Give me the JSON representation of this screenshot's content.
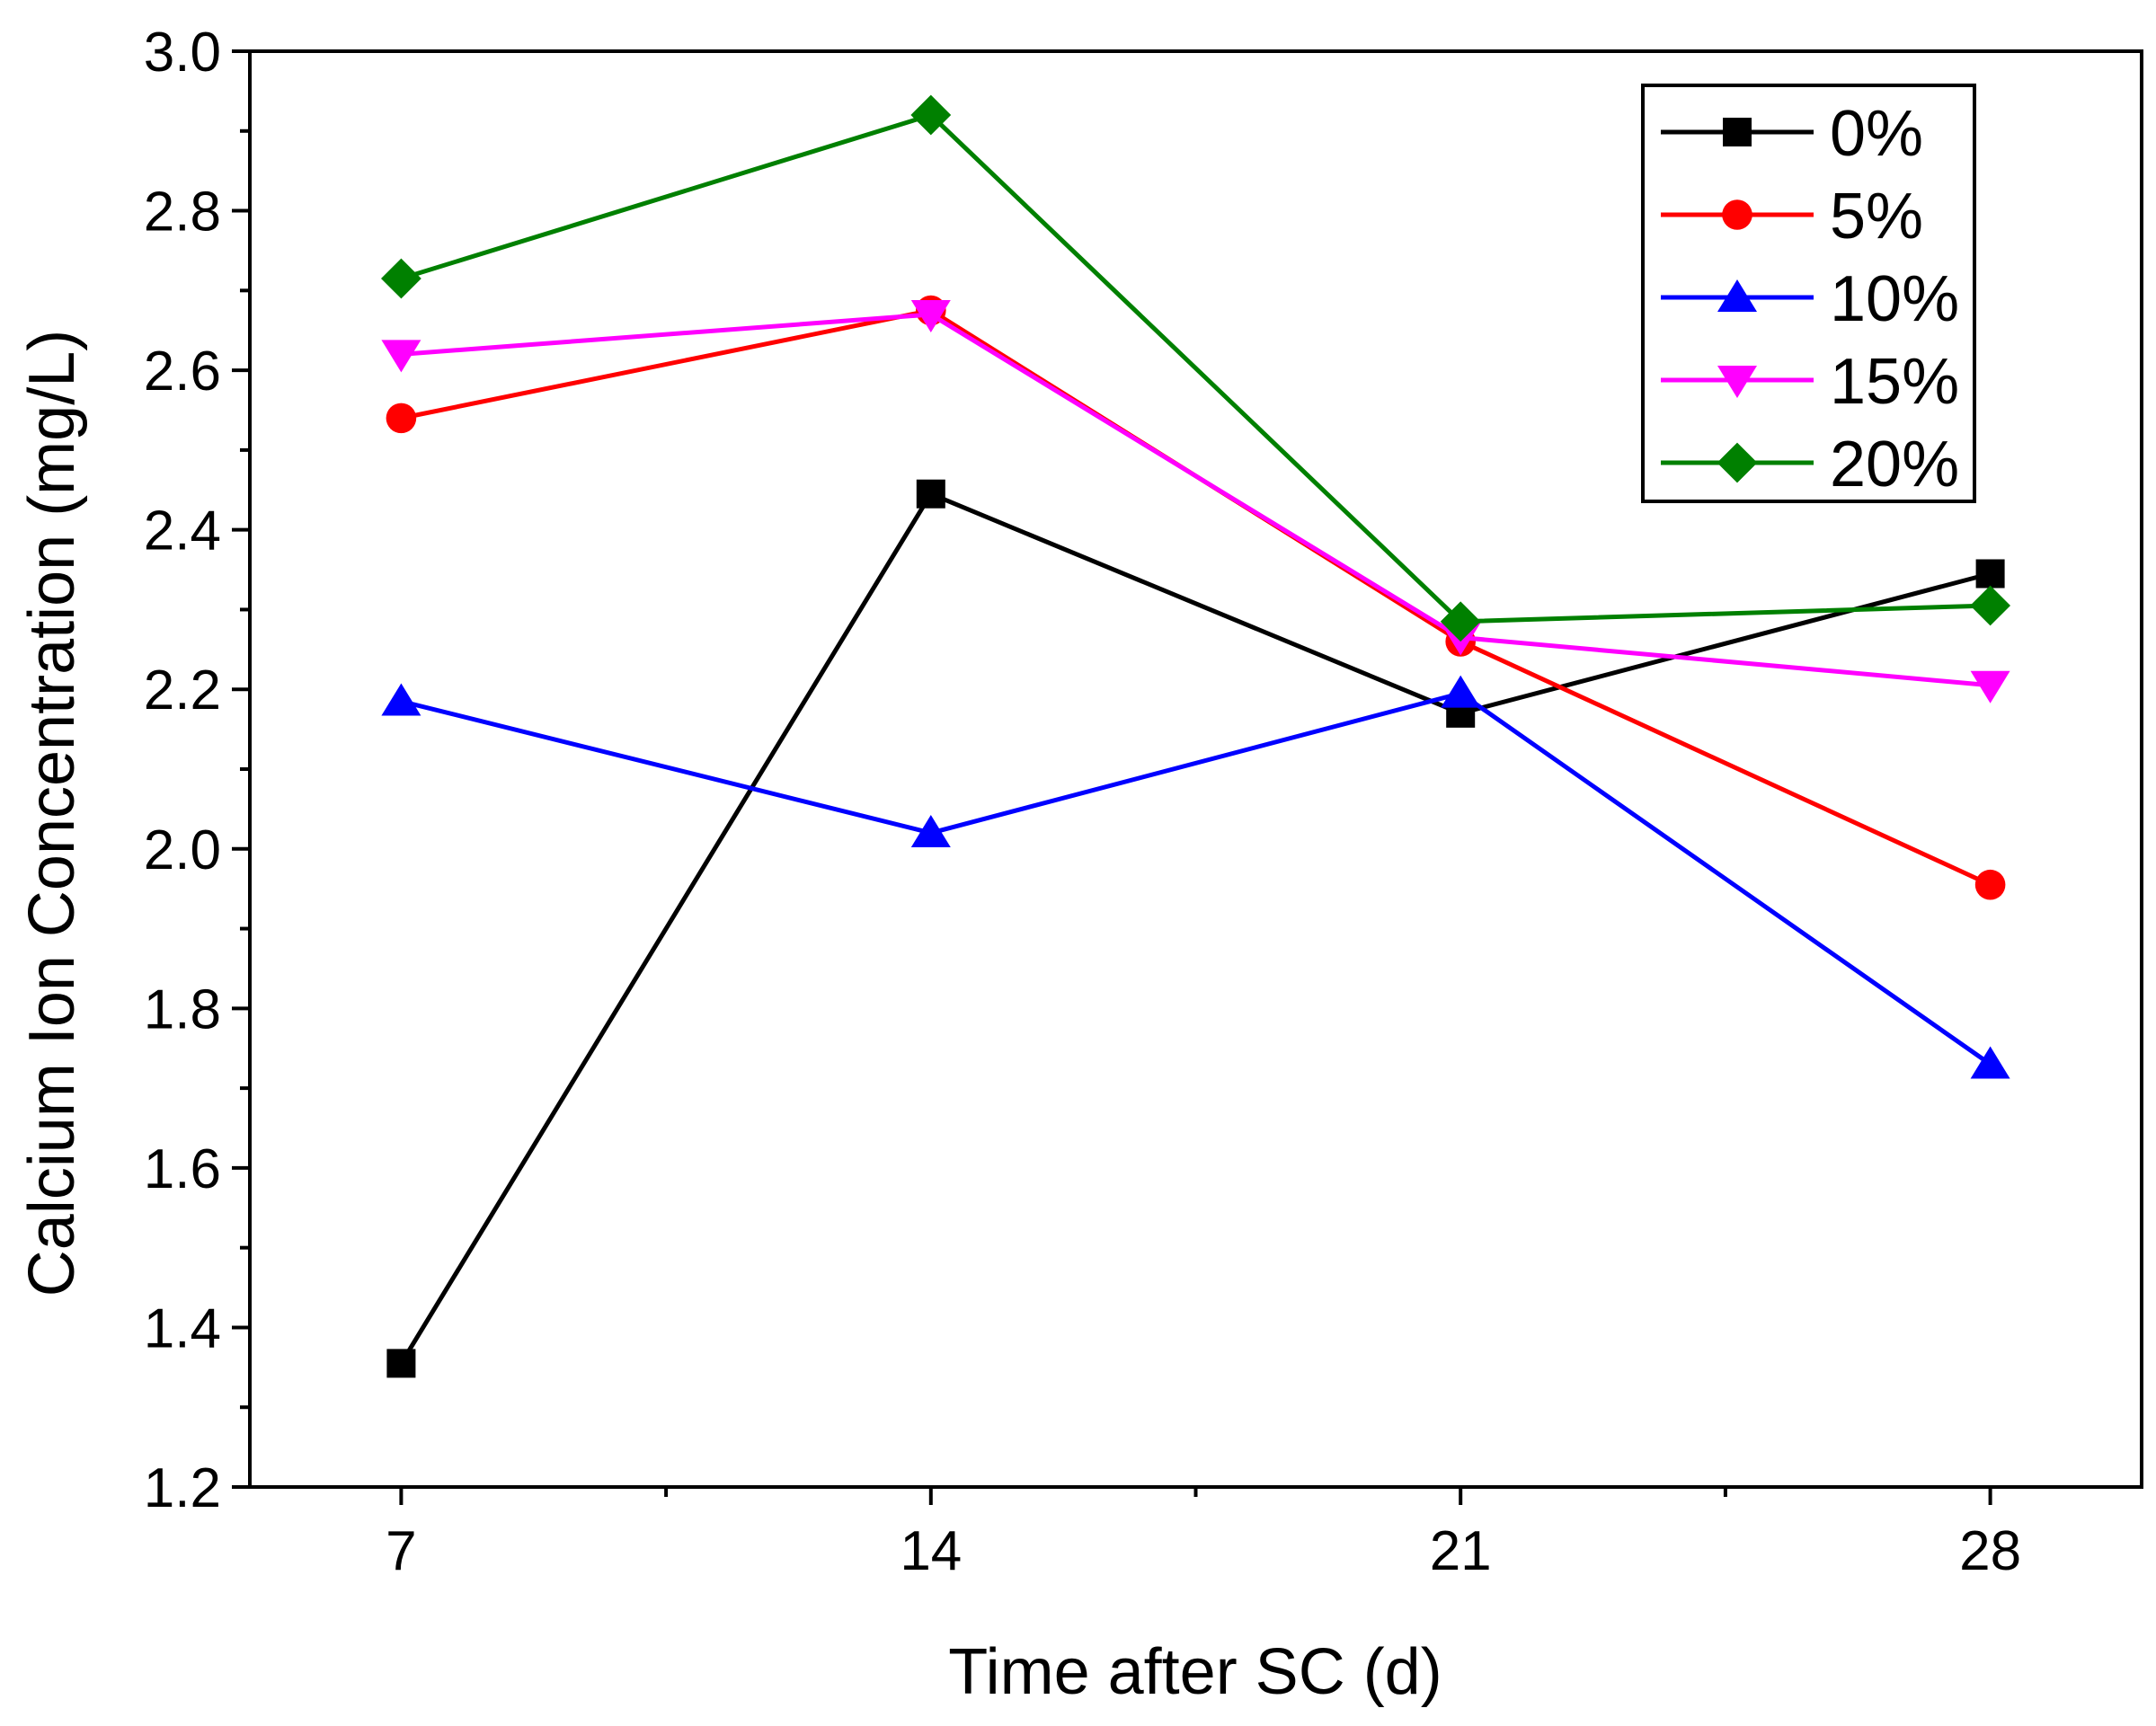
{
  "chart_data": {
    "type": "line",
    "title": "",
    "xlabel": "Time after SC (d)",
    "ylabel": "Calcium Ion Concentration (mg/L)",
    "x": [
      7,
      14,
      21,
      28
    ],
    "x_tick_labels": [
      "7",
      "14",
      "21",
      "28"
    ],
    "xlim": [
      5,
      30
    ],
    "ylim": [
      1.2,
      3.0
    ],
    "y_ticks": [
      1.2,
      1.4,
      1.6,
      1.8,
      2.0,
      2.2,
      2.4,
      2.6,
      2.8,
      3.0
    ],
    "y_tick_labels": [
      "1.2",
      "1.4",
      "1.6",
      "1.8",
      "2.0",
      "2.2",
      "2.4",
      "2.6",
      "2.8",
      "3.0"
    ],
    "grid": false,
    "legend_position": "top-right",
    "series": [
      {
        "name": "0%",
        "color": "#000000",
        "marker": "square",
        "values": [
          1.355,
          2.445,
          2.17,
          2.345
        ]
      },
      {
        "name": "5%",
        "color": "#ff0000",
        "marker": "circle",
        "values": [
          2.54,
          2.675,
          2.26,
          1.955
        ]
      },
      {
        "name": "10%",
        "color": "#0000ff",
        "marker": "triangle-up",
        "values": [
          2.185,
          2.02,
          2.195,
          1.73
        ]
      },
      {
        "name": "15%",
        "color": "#ff00ff",
        "marker": "triangle-down",
        "values": [
          2.62,
          2.67,
          2.265,
          2.205
        ]
      },
      {
        "name": "20%",
        "color": "#008000",
        "marker": "diamond",
        "values": [
          2.715,
          2.92,
          2.285,
          2.305
        ]
      }
    ]
  }
}
